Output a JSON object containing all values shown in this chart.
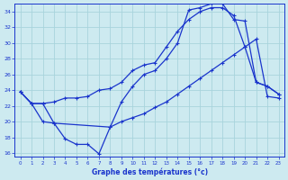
{
  "title": "Graphe des températures (°c)",
  "background_color": "#cdeaf0",
  "grid_color": "#a8d4dc",
  "line_color": "#1a35cc",
  "xlim": [
    -0.5,
    23.5
  ],
  "ylim": [
    15.5,
    35.0
  ],
  "yticks": [
    16,
    18,
    20,
    22,
    24,
    26,
    28,
    30,
    32,
    34
  ],
  "xticks": [
    0,
    1,
    2,
    3,
    4,
    5,
    6,
    7,
    8,
    9,
    10,
    11,
    12,
    13,
    14,
    15,
    16,
    17,
    18,
    19,
    20,
    21,
    22,
    23
  ],
  "series1_x": [
    0,
    1,
    2,
    3,
    4,
    5,
    6,
    7,
    8,
    9,
    10,
    11,
    12,
    13,
    14,
    15,
    16,
    17,
    18,
    19,
    20,
    21,
    22,
    23
  ],
  "series1_y": [
    23.8,
    22.3,
    20.0,
    19.8,
    17.8,
    17.1,
    17.1,
    15.9,
    19.3,
    20.0,
    20.5,
    21.0,
    21.8,
    22.5,
    23.5,
    24.5,
    25.5,
    26.5,
    27.5,
    28.5,
    29.5,
    30.5,
    23.2,
    23.0
  ],
  "series2_x": [
    0,
    1,
    2,
    3,
    4,
    5,
    6,
    7,
    8,
    9,
    10,
    11,
    12,
    13,
    14,
    15,
    16,
    17,
    18,
    19,
    20,
    21,
    22,
    23
  ],
  "series2_y": [
    23.8,
    22.3,
    22.3,
    22.5,
    23.0,
    23.0,
    23.2,
    24.0,
    24.2,
    25.0,
    26.5,
    27.2,
    27.5,
    29.5,
    31.5,
    33.0,
    34.0,
    34.5,
    34.5,
    33.5,
    29.5,
    25.0,
    24.5,
    23.5
  ],
  "series3_x": [
    0,
    1,
    2,
    3,
    8,
    9,
    10,
    11,
    12,
    13,
    14,
    15,
    16,
    17,
    18,
    19,
    20,
    21,
    22,
    23
  ],
  "series3_y": [
    23.8,
    22.3,
    22.3,
    19.8,
    19.3,
    22.5,
    24.5,
    26.0,
    26.5,
    28.0,
    30.0,
    34.2,
    34.5,
    35.0,
    35.0,
    33.0,
    32.8,
    25.0,
    24.5,
    23.5
  ]
}
